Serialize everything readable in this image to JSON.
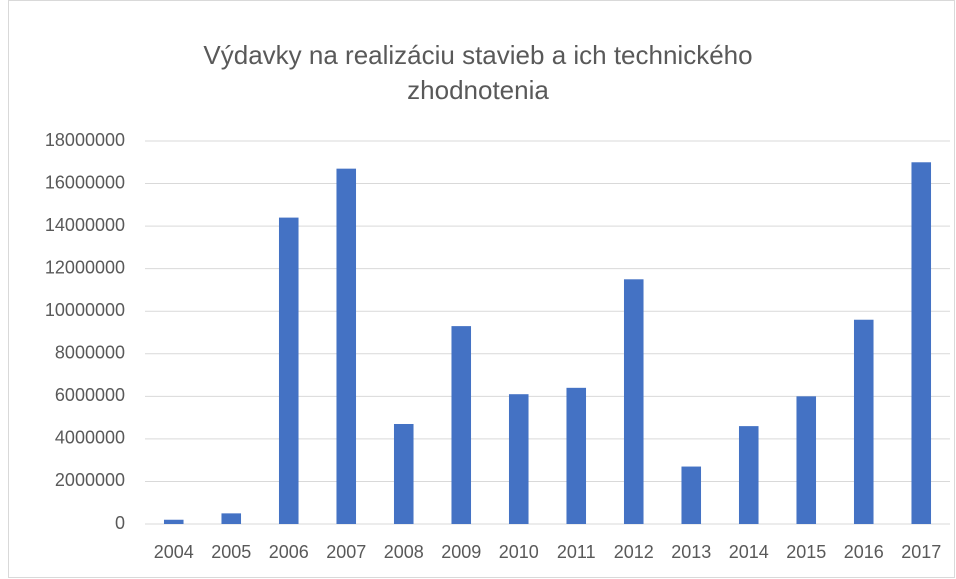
{
  "chart_data": {
    "type": "bar",
    "title": "Výdavky na realizáciu stavieb a ich technického zhodnotenia",
    "categories": [
      "2004",
      "2005",
      "2006",
      "2007",
      "2008",
      "2009",
      "2010",
      "2011",
      "2012",
      "2013",
      "2014",
      "2015",
      "2016",
      "2017"
    ],
    "values": [
      200000,
      500000,
      14400000,
      16700000,
      4700000,
      9300000,
      6100000,
      6400000,
      11500000,
      2700000,
      4600000,
      6000000,
      9600000,
      17000000
    ],
    "color": "#4472c4",
    "ylim": [
      0,
      18000000
    ],
    "yticks": [
      0,
      2000000,
      4000000,
      6000000,
      8000000,
      10000000,
      12000000,
      14000000,
      16000000,
      18000000
    ],
    "grid": true
  }
}
